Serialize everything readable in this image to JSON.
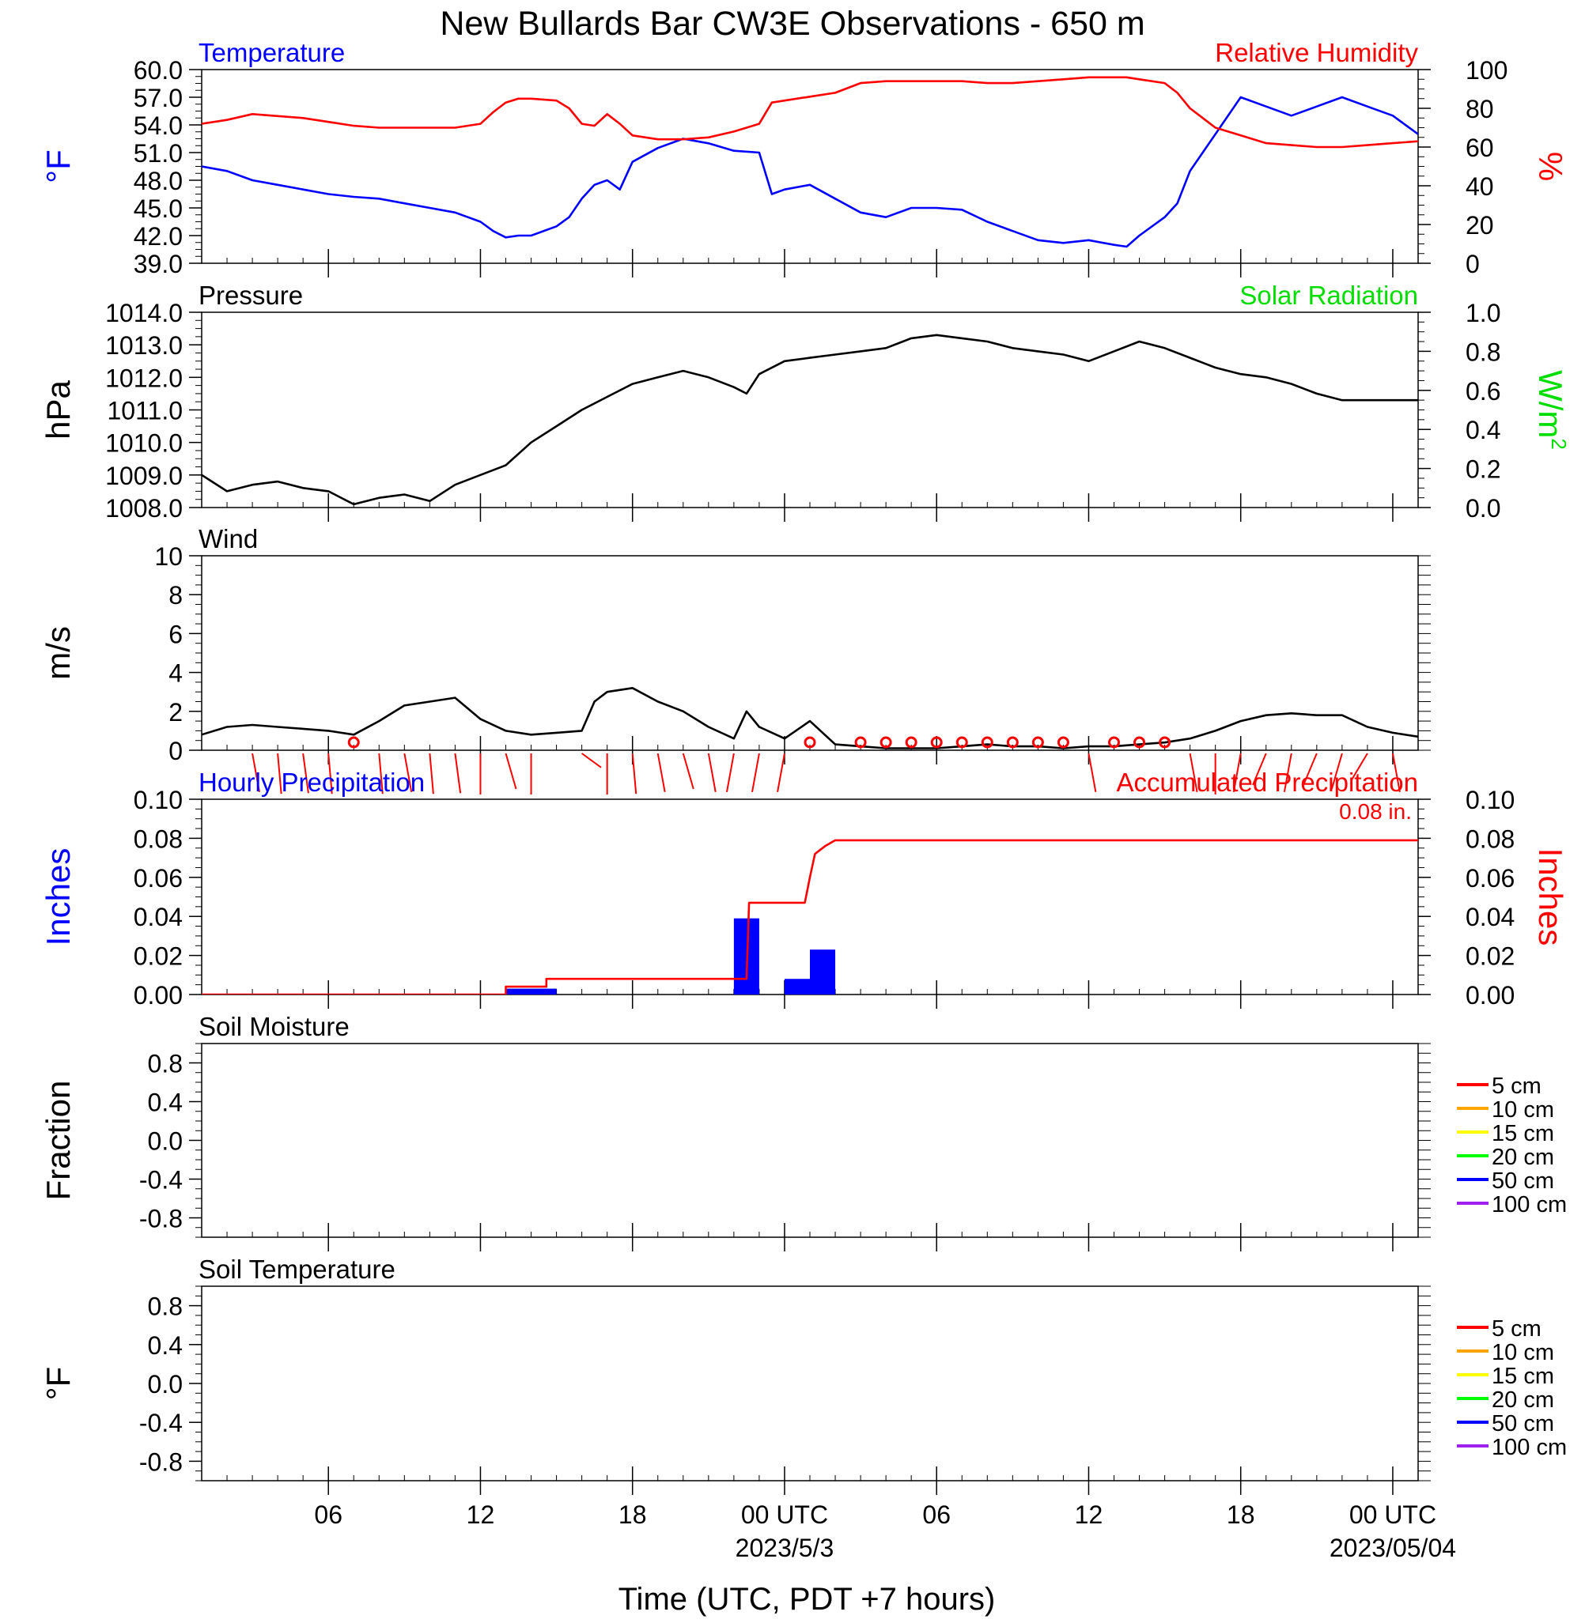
{
  "page_title": "New Bullards Bar CW3E Observations - 650 m",
  "x_axis": {
    "label": "Time (UTC, PDT +7 hours)",
    "ticks": [
      {
        "hour": 6,
        "label": "06"
      },
      {
        "hour": 12,
        "label": "12"
      },
      {
        "hour": 18,
        "label": "18"
      },
      {
        "hour": 24,
        "label": "00 UTC",
        "sublabel": "2023/5/3"
      },
      {
        "hour": 30,
        "label": "06"
      },
      {
        "hour": 36,
        "label": "12"
      },
      {
        "hour": 42,
        "label": "18"
      },
      {
        "hour": 48,
        "label": "00 UTC",
        "sublabel": "2023/05/04"
      }
    ],
    "range_hours": [
      1,
      49
    ],
    "start_date": "2023-05-02T01:00Z"
  },
  "colors": {
    "temperature": "#0000ff",
    "humidity": "#ff0000",
    "pressure": "#000000",
    "solar": "#00dd00",
    "wind": "#000000",
    "wind_barb": "#ff0000",
    "hourly_precip": "#0000ff",
    "accum_precip": "#ff0000",
    "soil_5": "#ff0000",
    "soil_10": "#ffa500",
    "soil_15": "#ffff00",
    "soil_20": "#00ff00",
    "soil_50": "#0000ff",
    "soil_100": "#a020f0"
  },
  "chart_data": [
    {
      "type": "line",
      "id": "temp_rh",
      "left_title": "Temperature",
      "right_title": "Relative Humidity",
      "left_unit": "°F",
      "right_unit": "%",
      "left_ylim": [
        39,
        60
      ],
      "left_ticks": [
        "39.0",
        "42.0",
        "45.0",
        "48.0",
        "51.0",
        "54.0",
        "57.0",
        "60.0"
      ],
      "right_ylim": [
        0,
        100
      ],
      "right_ticks": [
        "0",
        "20",
        "40",
        "60",
        "80",
        "100"
      ],
      "series": [
        {
          "name": "Temperature",
          "axis": "left",
          "x": [
            1,
            2,
            3,
            4,
            5,
            6,
            7,
            8,
            9,
            10,
            11,
            12,
            12.5,
            13,
            13.5,
            14,
            15,
            15.5,
            16,
            16.5,
            17,
            17.5,
            18,
            19,
            20,
            21,
            22,
            23,
            23.5,
            24,
            25,
            26,
            27,
            28,
            29,
            30,
            31,
            32,
            33,
            34,
            35,
            36,
            37,
            37.5,
            38,
            39,
            39.5,
            40,
            41,
            42,
            43,
            44,
            45,
            46,
            47,
            48,
            49
          ],
          "y": [
            49.5,
            49,
            48,
            47.5,
            47,
            46.5,
            46.2,
            46,
            45.5,
            45,
            44.5,
            43.5,
            42.5,
            41.8,
            42,
            42,
            43,
            44,
            46,
            47.5,
            48,
            47,
            50,
            51.5,
            52.5,
            52,
            51.2,
            51,
            46.5,
            47,
            47.5,
            46,
            44.5,
            44,
            45,
            45,
            44.8,
            43.5,
            42.5,
            41.5,
            41.2,
            41.5,
            41,
            40.8,
            42,
            44,
            45.5,
            49,
            53,
            57,
            56,
            55,
            56,
            57,
            56,
            55,
            53
          ]
        },
        {
          "name": "Relative Humidity",
          "axis": "right",
          "x": [
            1,
            2,
            3,
            4,
            5,
            6,
            7,
            8,
            9,
            10,
            11,
            12,
            12.5,
            13,
            13.5,
            14,
            15,
            15.5,
            16,
            16.5,
            17,
            17.5,
            18,
            19,
            20,
            21,
            22,
            23,
            23.5,
            24,
            25,
            26,
            27,
            28,
            29,
            30,
            31,
            32,
            33,
            34,
            35,
            36,
            37,
            37.5,
            38,
            39,
            39.5,
            40,
            41,
            42,
            43,
            44,
            45,
            46,
            47,
            48,
            49
          ],
          "y": [
            72,
            74,
            77,
            76,
            75,
            73,
            71,
            70,
            70,
            70,
            70,
            72,
            78,
            83,
            85,
            85,
            84,
            80,
            72,
            71,
            77,
            72,
            66,
            64,
            64,
            65,
            68,
            72,
            83,
            84,
            86,
            88,
            93,
            94,
            94,
            94,
            94,
            93,
            93,
            94,
            95,
            96,
            96,
            96,
            95,
            93,
            88,
            80,
            70,
            66,
            62,
            61,
            60,
            60,
            61,
            62,
            63
          ]
        }
      ]
    },
    {
      "type": "line",
      "id": "pressure_solar",
      "left_title": "Pressure",
      "right_title": "Solar Radiation",
      "left_unit": "hPa",
      "right_unit": "W/m",
      "right_unit_sup": "2",
      "left_ylim": [
        1008,
        1014
      ],
      "left_ticks": [
        "1008.0",
        "1009.0",
        "1010.0",
        "1011.0",
        "1012.0",
        "1013.0",
        "1014.0"
      ],
      "right_ylim": [
        0,
        1
      ],
      "right_ticks": [
        "0.0",
        "0.2",
        "0.4",
        "0.6",
        "0.8",
        "1.0"
      ],
      "series": [
        {
          "name": "Pressure",
          "axis": "left",
          "x": [
            1,
            2,
            3,
            4,
            5,
            6,
            7,
            8,
            9,
            10,
            11,
            12,
            13,
            14,
            15,
            16,
            17,
            18,
            19,
            20,
            21,
            22,
            22.5,
            23,
            24,
            25,
            26,
            27,
            28,
            29,
            30,
            31,
            32,
            33,
            34,
            35,
            36,
            37,
            38,
            39,
            40,
            41,
            42,
            43,
            44,
            45,
            46,
            47,
            48,
            49
          ],
          "y": [
            1009.0,
            1008.5,
            1008.7,
            1008.8,
            1008.6,
            1008.5,
            1008.1,
            1008.3,
            1008.4,
            1008.2,
            1008.7,
            1009.0,
            1009.3,
            1010.0,
            1010.5,
            1011.0,
            1011.4,
            1011.8,
            1012.0,
            1012.2,
            1012.0,
            1011.7,
            1011.5,
            1012.1,
            1012.5,
            1012.6,
            1012.7,
            1012.8,
            1012.9,
            1013.2,
            1013.3,
            1013.2,
            1013.1,
            1012.9,
            1012.8,
            1012.7,
            1012.5,
            1012.8,
            1013.1,
            1012.9,
            1012.6,
            1012.3,
            1012.1,
            1012.0,
            1011.8,
            1011.5,
            1011.3,
            1011.3,
            1011.3,
            1011.3
          ]
        }
      ]
    },
    {
      "type": "line",
      "id": "wind",
      "left_title": "Wind",
      "left_unit": "m/s",
      "left_ylim": [
        0,
        10
      ],
      "left_ticks": [
        "0",
        "2",
        "4",
        "6",
        "8",
        "10"
      ],
      "series": [
        {
          "name": "Wind",
          "axis": "left",
          "x": [
            1,
            2,
            3,
            4,
            5,
            6,
            7,
            8,
            9,
            10,
            11,
            12,
            13,
            14,
            15,
            16,
            16.5,
            17,
            18,
            19,
            20,
            21,
            22,
            22.5,
            23,
            24,
            25,
            26,
            27,
            28,
            29,
            30,
            31,
            32,
            33,
            34,
            35,
            36,
            37,
            38,
            39,
            40,
            41,
            42,
            43,
            44,
            45,
            46,
            47,
            48,
            49
          ],
          "y": [
            0.8,
            1.2,
            1.3,
            1.2,
            1.1,
            1.0,
            0.8,
            1.5,
            2.3,
            2.5,
            2.7,
            1.6,
            1.0,
            0.8,
            0.9,
            1.0,
            2.5,
            3.0,
            3.2,
            2.5,
            2.0,
            1.2,
            0.6,
            2.0,
            1.2,
            0.6,
            1.5,
            0.3,
            0.2,
            0.1,
            0.1,
            0.1,
            0.2,
            0.3,
            0.2,
            0.2,
            0.1,
            0.2,
            0.2,
            0.3,
            0.4,
            0.6,
            1.0,
            1.5,
            1.8,
            1.9,
            1.8,
            1.8,
            1.2,
            0.9,
            0.7
          ]
        }
      ]
    },
    {
      "type": "bar",
      "id": "precip",
      "left_title": "Hourly Precipitation",
      "right_title": "Accumulated Precipitation",
      "annotation": "0.08 in.",
      "left_unit": "Inches",
      "right_unit": "Inches",
      "left_ylim": [
        0,
        0.1
      ],
      "left_ticks": [
        "0.00",
        "0.02",
        "0.04",
        "0.06",
        "0.08",
        "0.10"
      ],
      "right_ylim": [
        0,
        0.1
      ],
      "right_ticks": [
        "0.00",
        "0.02",
        "0.04",
        "0.06",
        "0.08",
        "0.10"
      ],
      "bars": [
        {
          "x0": 13,
          "x1": 14,
          "value": 0.003
        },
        {
          "x0": 14,
          "x1": 15,
          "value": 0.003
        },
        {
          "x0": 22,
          "x1": 23,
          "value": 0.039
        },
        {
          "x0": 24,
          "x1": 25,
          "value": 0.008
        },
        {
          "x0": 25,
          "x1": 26,
          "value": 0.023
        }
      ],
      "series": [
        {
          "name": "Accumulated Precipitation",
          "axis": "right",
          "x": [
            1,
            13,
            13,
            14.6,
            14.6,
            22.5,
            22.6,
            24.8,
            25.0,
            25.2,
            25.4,
            25.6,
            26.0,
            49
          ],
          "y": [
            0,
            0,
            0.004,
            0.004,
            0.008,
            0.008,
            0.047,
            0.047,
            0.06,
            0.072,
            0.074,
            0.076,
            0.079,
            0.079
          ]
        }
      ]
    },
    {
      "type": "line",
      "id": "soil_moisture",
      "left_title": "Soil Moisture",
      "left_unit": "Fraction",
      "left_ylim": [
        -1,
        1
      ],
      "left_ticks": [
        "-0.8",
        "-0.4",
        "0.0",
        "0.4",
        "0.8"
      ],
      "legend": [
        "5 cm",
        "10 cm",
        "15 cm",
        "20 cm",
        "50 cm",
        "100 cm"
      ],
      "series": []
    },
    {
      "type": "line",
      "id": "soil_temperature",
      "left_title": "Soil Temperature",
      "left_unit": "°F",
      "left_ylim": [
        -1,
        1
      ],
      "left_ticks": [
        "-0.8",
        "-0.4",
        "0.0",
        "0.4",
        "0.8"
      ],
      "legend": [
        "5 cm",
        "10 cm",
        "15 cm",
        "20 cm",
        "50 cm",
        "100 cm"
      ],
      "series": []
    }
  ],
  "wind_barbs": [
    {
      "hour": 3,
      "dir": 160,
      "spd": 1
    },
    {
      "hour": 4,
      "dir": 170,
      "spd": 1
    },
    {
      "hour": 5,
      "dir": 165,
      "spd": 1
    },
    {
      "hour": 6,
      "dir": 170,
      "spd": 1
    },
    {
      "hour": 7,
      "dir": 0,
      "spd": 0
    },
    {
      "hour": 8,
      "dir": 170,
      "spd": 1
    },
    {
      "hour": 9,
      "dir": 160,
      "spd": 1
    },
    {
      "hour": 10,
      "dir": 170,
      "spd": 1
    },
    {
      "hour": 11,
      "dir": 165,
      "spd": 1
    },
    {
      "hour": 12,
      "dir": 180,
      "spd": 1
    },
    {
      "hour": 13,
      "dir": 150,
      "spd": 1
    },
    {
      "hour": 14,
      "dir": 180,
      "spd": 1
    },
    {
      "hour": 16,
      "dir": 110,
      "spd": 1
    },
    {
      "hour": 17,
      "dir": 180,
      "spd": 1
    },
    {
      "hour": 18,
      "dir": 170,
      "spd": 1
    },
    {
      "hour": 19,
      "dir": 160,
      "spd": 1
    },
    {
      "hour": 20,
      "dir": 150,
      "spd": 1
    },
    {
      "hour": 21,
      "dir": 160,
      "spd": 1
    },
    {
      "hour": 22,
      "dir": 200,
      "spd": 1
    },
    {
      "hour": 23,
      "dir": 200,
      "spd": 1
    },
    {
      "hour": 24,
      "dir": 200,
      "spd": 1
    },
    {
      "hour": 25,
      "dir": 0,
      "spd": 0
    },
    {
      "hour": 27,
      "dir": 0,
      "spd": 0
    },
    {
      "hour": 28,
      "dir": 0,
      "spd": 0
    },
    {
      "hour": 29,
      "dir": 0,
      "spd": 0
    },
    {
      "hour": 30,
      "dir": 0,
      "spd": 0
    },
    {
      "hour": 31,
      "dir": 0,
      "spd": 0
    },
    {
      "hour": 32,
      "dir": 0,
      "spd": 0
    },
    {
      "hour": 33,
      "dir": 0,
      "spd": 0
    },
    {
      "hour": 34,
      "dir": 0,
      "spd": 0
    },
    {
      "hour": 35,
      "dir": 0,
      "spd": 0
    },
    {
      "hour": 36,
      "dir": 160,
      "spd": 1
    },
    {
      "hour": 37,
      "dir": 0,
      "spd": 0
    },
    {
      "hour": 38,
      "dir": 0,
      "spd": 0
    },
    {
      "hour": 39,
      "dir": 0,
      "spd": 0
    },
    {
      "hour": 40,
      "dir": 160,
      "spd": 1
    },
    {
      "hour": 41,
      "dir": 180,
      "spd": 1
    },
    {
      "hour": 42,
      "dir": 200,
      "spd": 1
    },
    {
      "hour": 43,
      "dir": 220,
      "spd": 1
    },
    {
      "hour": 44,
      "dir": 200,
      "spd": 1
    },
    {
      "hour": 45,
      "dir": 220,
      "spd": 1
    },
    {
      "hour": 46,
      "dir": 210,
      "spd": 1
    },
    {
      "hour": 47,
      "dir": 230,
      "spd": 1
    },
    {
      "hour": 48,
      "dir": 160,
      "spd": 1
    }
  ]
}
